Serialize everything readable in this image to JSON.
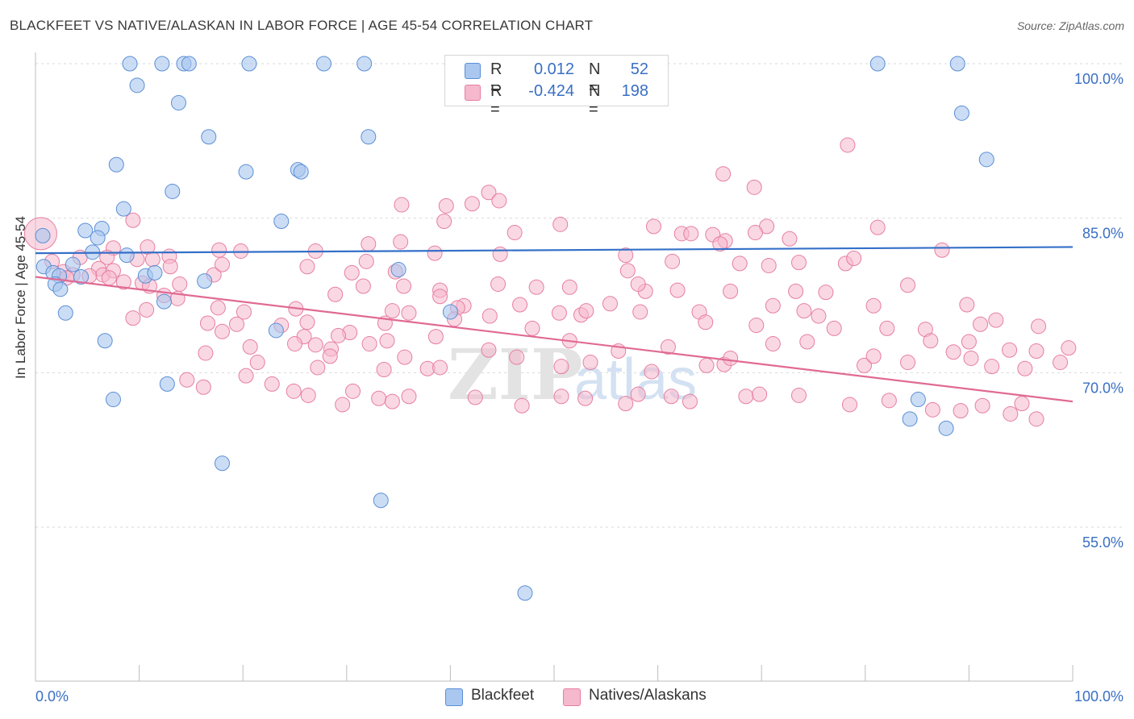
{
  "header": {
    "title": "BLACKFEET VS NATIVE/ALASKAN IN LABOR FORCE | AGE 45-54 CORRELATION CHART",
    "source": "Source: ZipAtlas.com"
  },
  "legend_top": {
    "rows": [
      {
        "r_label": "R =",
        "r_value": "0.012",
        "n_label": "N =",
        "n_value": "52"
      },
      {
        "r_label": "R =",
        "r_value": "-0.424",
        "n_label": "N =",
        "n_value": "198"
      }
    ]
  },
  "legend_bottom": {
    "items": [
      {
        "label": "Blackfeet"
      },
      {
        "label": "Natives/Alaskans"
      }
    ]
  },
  "watermark": {
    "zip": "ZIP",
    "atlas": "atlas"
  },
  "colors": {
    "blackfeet_fill": "#a9c7ef",
    "blackfeet_stroke": "#5b8fd6",
    "blackfeet_line": "#3470c8",
    "natives_fill": "#f5b8cc",
    "natives_stroke": "#e67fa1",
    "natives_line": "#e06a94",
    "axis_text": "#3a6fc4",
    "grid": "#d9d9d9"
  },
  "chart_data": {
    "type": "scatter",
    "title": "BLACKFEET VS NATIVE/ALASKAN IN LABOR FORCE | AGE 45-54 CORRELATION CHART",
    "xlabel": "",
    "ylabel": "In Labor Force | Age 45-54",
    "xlim": [
      0,
      100
    ],
    "ylim": [
      40,
      101.5
    ],
    "x_tick_labels": [
      "0.0%",
      "100.0%"
    ],
    "y_ticks": [
      55,
      70,
      85,
      100
    ],
    "y_tick_labels": [
      "55.0%",
      "70.0%",
      "85.0%",
      "100.0%"
    ],
    "grid": true,
    "legend_position": "bottom",
    "series": [
      {
        "name": "Blackfeet",
        "r": 0.012,
        "n": 52,
        "trend": [
          [
            0,
            81.6
          ],
          [
            100,
            82.2
          ]
        ],
        "points": [
          [
            9.1,
            100
          ],
          [
            12.2,
            100
          ],
          [
            14.3,
            100
          ],
          [
            14.8,
            100
          ],
          [
            20.6,
            100
          ],
          [
            27.8,
            100
          ],
          [
            31.7,
            100
          ],
          [
            81.2,
            100
          ],
          [
            88.9,
            100
          ],
          [
            9.8,
            97.9
          ],
          [
            13.8,
            96.2
          ],
          [
            89.3,
            95.2
          ],
          [
            16.7,
            92.9
          ],
          [
            32.1,
            92.9
          ],
          [
            91.7,
            90.7
          ],
          [
            7.8,
            90.2
          ],
          [
            20.3,
            89.5
          ],
          [
            25.3,
            89.7
          ],
          [
            25.6,
            89.5
          ],
          [
            13.2,
            87.6
          ],
          [
            8.5,
            85.9
          ],
          [
            23.7,
            84.7
          ],
          [
            4.8,
            83.8
          ],
          [
            6.4,
            84.0
          ],
          [
            6.0,
            83.1
          ],
          [
            0.7,
            83.3
          ],
          [
            5.5,
            81.7
          ],
          [
            8.8,
            81.4
          ],
          [
            0.8,
            80.3
          ],
          [
            3.6,
            80.5
          ],
          [
            1.7,
            79.7
          ],
          [
            2.3,
            79.4
          ],
          [
            4.4,
            79.3
          ],
          [
            10.6,
            79.4
          ],
          [
            11.5,
            79.7
          ],
          [
            16.3,
            78.9
          ],
          [
            1.9,
            78.6
          ],
          [
            2.4,
            78.1
          ],
          [
            35.0,
            80.0
          ],
          [
            12.4,
            76.9
          ],
          [
            2.9,
            75.8
          ],
          [
            40.0,
            75.9
          ],
          [
            23.2,
            74.1
          ],
          [
            6.7,
            73.1
          ],
          [
            12.7,
            68.9
          ],
          [
            7.5,
            67.4
          ],
          [
            85.1,
            67.4
          ],
          [
            84.3,
            65.5
          ],
          [
            87.8,
            64.6
          ],
          [
            18.0,
            61.2
          ],
          [
            33.3,
            57.6
          ],
          [
            47.2,
            48.6
          ]
        ]
      },
      {
        "name": "Natives/Alaskans",
        "r": -0.424,
        "n": 198,
        "trend": [
          [
            0,
            79.3
          ],
          [
            100,
            67.2
          ]
        ],
        "points": [
          [
            0.5,
            83.5
          ],
          [
            78.3,
            92.1
          ],
          [
            66.3,
            89.3
          ],
          [
            69.3,
            88.0
          ],
          [
            43.7,
            87.5
          ],
          [
            44.7,
            86.7
          ],
          [
            42.1,
            86.4
          ],
          [
            35.3,
            86.3
          ],
          [
            39.6,
            86.2
          ],
          [
            9.4,
            84.8
          ],
          [
            39.4,
            84.7
          ],
          [
            50.6,
            84.4
          ],
          [
            59.6,
            84.2
          ],
          [
            62.3,
            83.5
          ],
          [
            70.5,
            84.2
          ],
          [
            81.2,
            84.1
          ],
          [
            46.2,
            83.6
          ],
          [
            63.2,
            83.5
          ],
          [
            65.3,
            83.4
          ],
          [
            66.5,
            82.8
          ],
          [
            66.0,
            82.5
          ],
          [
            72.7,
            83.0
          ],
          [
            69.4,
            83.6
          ],
          [
            7.5,
            82.1
          ],
          [
            10.8,
            82.2
          ],
          [
            12.9,
            81.3
          ],
          [
            35.2,
            82.7
          ],
          [
            32.1,
            82.5
          ],
          [
            44.8,
            81.5
          ],
          [
            4.3,
            81.2
          ],
          [
            6.9,
            81.2
          ],
          [
            9.8,
            81.0
          ],
          [
            11.3,
            81.0
          ],
          [
            17.7,
            81.9
          ],
          [
            19.8,
            81.8
          ],
          [
            27.0,
            81.8
          ],
          [
            38.5,
            81.6
          ],
          [
            56.9,
            81.4
          ],
          [
            61.4,
            80.8
          ],
          [
            67.9,
            80.6
          ],
          [
            70.7,
            80.4
          ],
          [
            73.6,
            80.7
          ],
          [
            78.1,
            80.6
          ],
          [
            78.9,
            81.1
          ],
          [
            87.4,
            81.9
          ],
          [
            31.9,
            80.8
          ],
          [
            1.6,
            80.8
          ],
          [
            2.7,
            79.8
          ],
          [
            6.1,
            80.1
          ],
          [
            3.6,
            79.5
          ],
          [
            6.5,
            79.5
          ],
          [
            7.5,
            79.9
          ],
          [
            13.0,
            80.3
          ],
          [
            17.2,
            79.5
          ],
          [
            18.0,
            80.5
          ],
          [
            26.2,
            80.3
          ],
          [
            30.5,
            79.7
          ],
          [
            34.7,
            79.8
          ],
          [
            57.1,
            79.9
          ],
          [
            58.8,
            77.9
          ],
          [
            3.0,
            79.2
          ],
          [
            5.2,
            79.4
          ],
          [
            7.1,
            79.2
          ],
          [
            8.5,
            78.8
          ],
          [
            10.3,
            78.7
          ],
          [
            11.0,
            78.4
          ],
          [
            13.9,
            78.6
          ],
          [
            35.5,
            78.4
          ],
          [
            39.0,
            78.0
          ],
          [
            31.6,
            78.4
          ],
          [
            44.6,
            78.6
          ],
          [
            48.3,
            78.3
          ],
          [
            51.5,
            78.3
          ],
          [
            58.1,
            78.6
          ],
          [
            61.9,
            78.0
          ],
          [
            73.3,
            77.9
          ],
          [
            76.2,
            77.8
          ],
          [
            84.1,
            78.5
          ],
          [
            12.4,
            77.5
          ],
          [
            13.7,
            77.2
          ],
          [
            28.9,
            77.6
          ],
          [
            39.0,
            77.4
          ],
          [
            41.3,
            76.5
          ],
          [
            46.7,
            76.6
          ],
          [
            55.4,
            76.7
          ],
          [
            64.0,
            75.9
          ],
          [
            67.0,
            77.9
          ],
          [
            10.7,
            76.1
          ],
          [
            17.6,
            76.3
          ],
          [
            20.1,
            75.9
          ],
          [
            25.1,
            76.2
          ],
          [
            34.4,
            76.0
          ],
          [
            36.0,
            75.8
          ],
          [
            40.7,
            76.3
          ],
          [
            43.8,
            75.5
          ],
          [
            50.5,
            75.8
          ],
          [
            52.6,
            75.6
          ],
          [
            53.1,
            76.0
          ],
          [
            58.3,
            75.9
          ],
          [
            71.1,
            76.5
          ],
          [
            74.1,
            76.0
          ],
          [
            75.5,
            75.5
          ],
          [
            80.8,
            76.5
          ],
          [
            89.8,
            76.6
          ],
          [
            92.6,
            75.1
          ],
          [
            9.4,
            75.3
          ],
          [
            16.6,
            74.8
          ],
          [
            19.4,
            74.7
          ],
          [
            23.7,
            74.6
          ],
          [
            26.2,
            74.9
          ],
          [
            30.3,
            73.9
          ],
          [
            33.7,
            74.8
          ],
          [
            40.4,
            75.2
          ],
          [
            47.9,
            74.3
          ],
          [
            64.6,
            74.9
          ],
          [
            69.5,
            74.6
          ],
          [
            77.0,
            74.3
          ],
          [
            82.1,
            74.3
          ],
          [
            85.8,
            74.2
          ],
          [
            91.1,
            74.7
          ],
          [
            96.7,
            74.5
          ],
          [
            18.0,
            74.0
          ],
          [
            20.7,
            72.5
          ],
          [
            25.9,
            73.5
          ],
          [
            27.0,
            72.7
          ],
          [
            28.5,
            72.3
          ],
          [
            29.2,
            73.6
          ],
          [
            32.2,
            72.8
          ],
          [
            33.9,
            73.1
          ],
          [
            38.6,
            73.5
          ],
          [
            43.7,
            72.2
          ],
          [
            51.5,
            73.1
          ],
          [
            56.2,
            72.1
          ],
          [
            61.0,
            72.5
          ],
          [
            71.1,
            72.8
          ],
          [
            74.4,
            73.0
          ],
          [
            86.3,
            73.1
          ],
          [
            90.0,
            73.0
          ],
          [
            93.9,
            72.2
          ],
          [
            96.5,
            72.1
          ],
          [
            16.4,
            71.9
          ],
          [
            25.0,
            72.8
          ],
          [
            21.4,
            71.0
          ],
          [
            27.2,
            70.5
          ],
          [
            28.4,
            71.6
          ],
          [
            33.6,
            70.3
          ],
          [
            35.6,
            71.5
          ],
          [
            37.8,
            70.4
          ],
          [
            39.0,
            70.5
          ],
          [
            46.4,
            71.5
          ],
          [
            50.7,
            70.6
          ],
          [
            53.5,
            71.0
          ],
          [
            59.4,
            70.1
          ],
          [
            64.7,
            70.7
          ],
          [
            66.4,
            70.8
          ],
          [
            67.0,
            71.4
          ],
          [
            79.9,
            70.7
          ],
          [
            80.8,
            71.6
          ],
          [
            84.1,
            71.0
          ],
          [
            88.5,
            72.0
          ],
          [
            90.2,
            71.4
          ],
          [
            92.2,
            70.6
          ],
          [
            95.4,
            70.4
          ],
          [
            98.8,
            71.0
          ],
          [
            99.6,
            72.4
          ],
          [
            14.6,
            69.3
          ],
          [
            16.2,
            68.6
          ],
          [
            20.3,
            69.7
          ],
          [
            22.8,
            68.9
          ],
          [
            24.9,
            68.2
          ],
          [
            26.3,
            67.8
          ],
          [
            29.6,
            66.9
          ],
          [
            30.6,
            68.2
          ],
          [
            33.1,
            67.5
          ],
          [
            34.4,
            67.2
          ],
          [
            36.0,
            67.7
          ],
          [
            42.4,
            67.6
          ],
          [
            46.9,
            66.8
          ],
          [
            50.7,
            67.7
          ],
          [
            53.0,
            67.5
          ],
          [
            56.9,
            67.0
          ],
          [
            58.1,
            67.9
          ],
          [
            61.3,
            67.7
          ],
          [
            63.1,
            67.2
          ],
          [
            68.5,
            67.7
          ],
          [
            69.8,
            67.9
          ],
          [
            73.6,
            67.8
          ],
          [
            78.5,
            66.9
          ],
          [
            82.3,
            67.3
          ],
          [
            86.5,
            66.4
          ],
          [
            89.2,
            66.3
          ],
          [
            91.3,
            66.8
          ],
          [
            94.0,
            66.0
          ],
          [
            95.1,
            67.0
          ],
          [
            96.5,
            65.5
          ]
        ]
      }
    ]
  }
}
